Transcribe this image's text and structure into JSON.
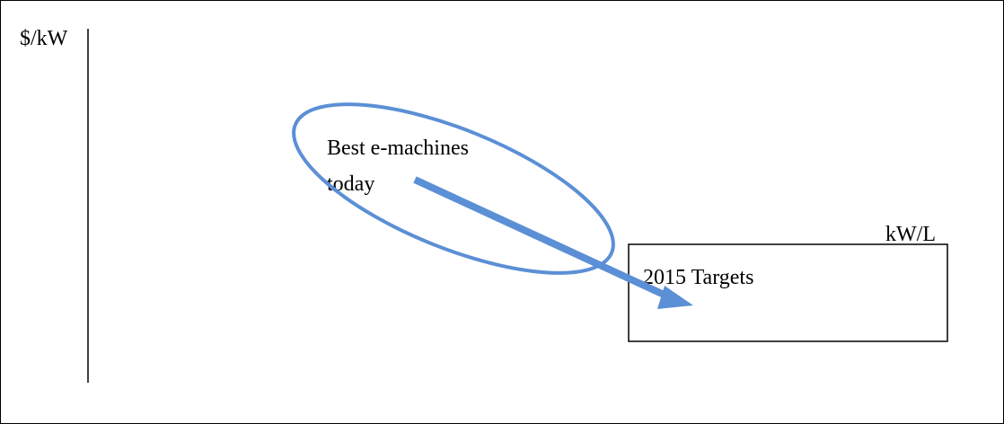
{
  "axes": {
    "y_label": "$/kW",
    "x_label": "kW/L"
  },
  "nodes": [
    {
      "label": "Best e-machines today"
    },
    {
      "label": "2015 Targets"
    }
  ]
}
